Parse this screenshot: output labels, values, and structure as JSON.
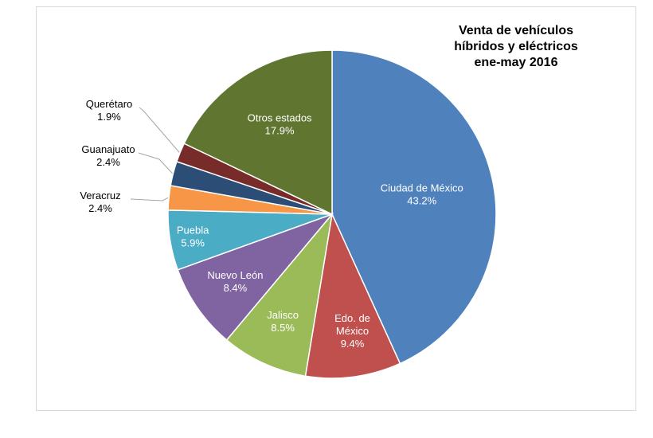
{
  "chart_data": {
    "type": "pie",
    "title_lines": [
      "Venta de vehículos",
      "híbridos y eléctricos",
      "ene-may 2016"
    ],
    "legend": "none",
    "slices": [
      {
        "label": "Ciudad de México",
        "value": 43.2,
        "value_label": "43.2%",
        "color": "#4f81bd"
      },
      {
        "label": "Edo. de México",
        "value": 9.4,
        "value_label": "9.4%",
        "color": "#c0504d"
      },
      {
        "label": "Jalisco",
        "value": 8.5,
        "value_label": "8.5%",
        "color": "#9bbb59"
      },
      {
        "label": "Nuevo León",
        "value": 8.4,
        "value_label": "8.4%",
        "color": "#8064a2"
      },
      {
        "label": "Puebla",
        "value": 5.9,
        "value_label": "5.9%",
        "color": "#4bacc6"
      },
      {
        "label": "Veracruz",
        "value": 2.4,
        "value_label": "2.4%",
        "color": "#f79646"
      },
      {
        "label": "Guanajuato",
        "value": 2.4,
        "value_label": "2.4%",
        "color": "#2c4d75"
      },
      {
        "label": "Querétaro",
        "value": 1.9,
        "value_label": "1.9%",
        "color": "#772c2a"
      },
      {
        "label": "Otros estados",
        "value": 17.9,
        "value_label": "17.9%",
        "color": "#5f7530"
      }
    ]
  }
}
